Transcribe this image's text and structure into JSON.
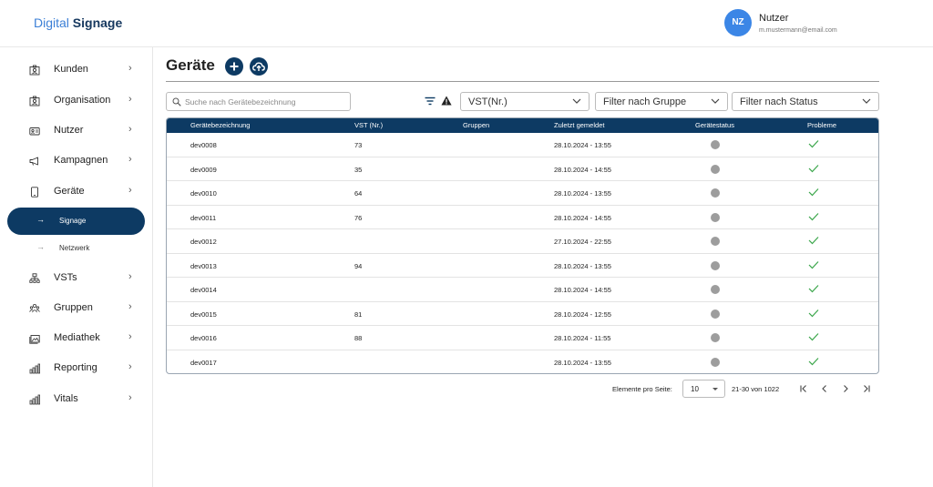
{
  "app": {
    "logo_part1": "Digital",
    "logo_part2": "Signage"
  },
  "user": {
    "initials": "NZ",
    "name": "Nutzer",
    "email": "m.mustermann@email.com"
  },
  "sidebar": {
    "items": [
      {
        "label": "Kunden",
        "icon": "customer-icon"
      },
      {
        "label": "Organisation",
        "icon": "organisation-icon"
      },
      {
        "label": "Nutzer",
        "icon": "user-card-icon"
      },
      {
        "label": "Kampagnen",
        "icon": "megaphone-icon"
      },
      {
        "label": "Geräte",
        "icon": "device-icon"
      }
    ],
    "subitems": [
      {
        "label": "Signage",
        "active": true
      },
      {
        "label": "Netzwerk",
        "active": false
      }
    ],
    "items2": [
      {
        "label": "VSTs",
        "icon": "network-icon"
      },
      {
        "label": "Gruppen",
        "icon": "groups-icon"
      },
      {
        "label": "Mediathek",
        "icon": "media-icon"
      },
      {
        "label": "Reporting",
        "icon": "chart-icon"
      },
      {
        "label": "Vitals",
        "icon": "chart-icon"
      }
    ]
  },
  "page": {
    "title": "Geräte"
  },
  "search": {
    "placeholder": "Suche nach Gerätebezeichnung"
  },
  "filters": {
    "vst": "VST(Nr.)",
    "group": "Filter nach Gruppe",
    "status": "Filter nach Status"
  },
  "table": {
    "headers": [
      "Gerätebezeichnung",
      "VST (Nr.)",
      "Gruppen",
      "Zuletzt gemeldet",
      "Gerätestatus",
      "Probleme"
    ],
    "rows": [
      {
        "name": "dev0008",
        "vst": "73",
        "groups": "",
        "last": "28.10.2024 - 13:55"
      },
      {
        "name": "dev0009",
        "vst": "35",
        "groups": "",
        "last": "28.10.2024 - 14:55"
      },
      {
        "name": "dev0010",
        "vst": "64",
        "groups": "",
        "last": "28.10.2024 - 13:55"
      },
      {
        "name": "dev0011",
        "vst": "76",
        "groups": "",
        "last": "28.10.2024 - 14:55"
      },
      {
        "name": "dev0012",
        "vst": "",
        "groups": "",
        "last": "27.10.2024 - 22:55"
      },
      {
        "name": "dev0013",
        "vst": "94",
        "groups": "",
        "last": "28.10.2024 - 13:55"
      },
      {
        "name": "dev0014",
        "vst": "",
        "groups": "",
        "last": "28.10.2024 - 14:55"
      },
      {
        "name": "dev0015",
        "vst": "81",
        "groups": "",
        "last": "28.10.2024 - 12:55"
      },
      {
        "name": "dev0016",
        "vst": "88",
        "groups": "",
        "last": "28.10.2024 - 11:55"
      },
      {
        "name": "dev0017",
        "vst": "",
        "groups": "",
        "last": "28.10.2024 - 13:55"
      }
    ]
  },
  "pagination": {
    "label": "Elemente pro Seite:",
    "page_size": "10",
    "range": "21-30 von 1022"
  },
  "colors": {
    "primary": "#0d3a63",
    "accent": "#3b86e6",
    "status_gray": "#9d9d9d",
    "ok_green": "#3aa64a"
  }
}
